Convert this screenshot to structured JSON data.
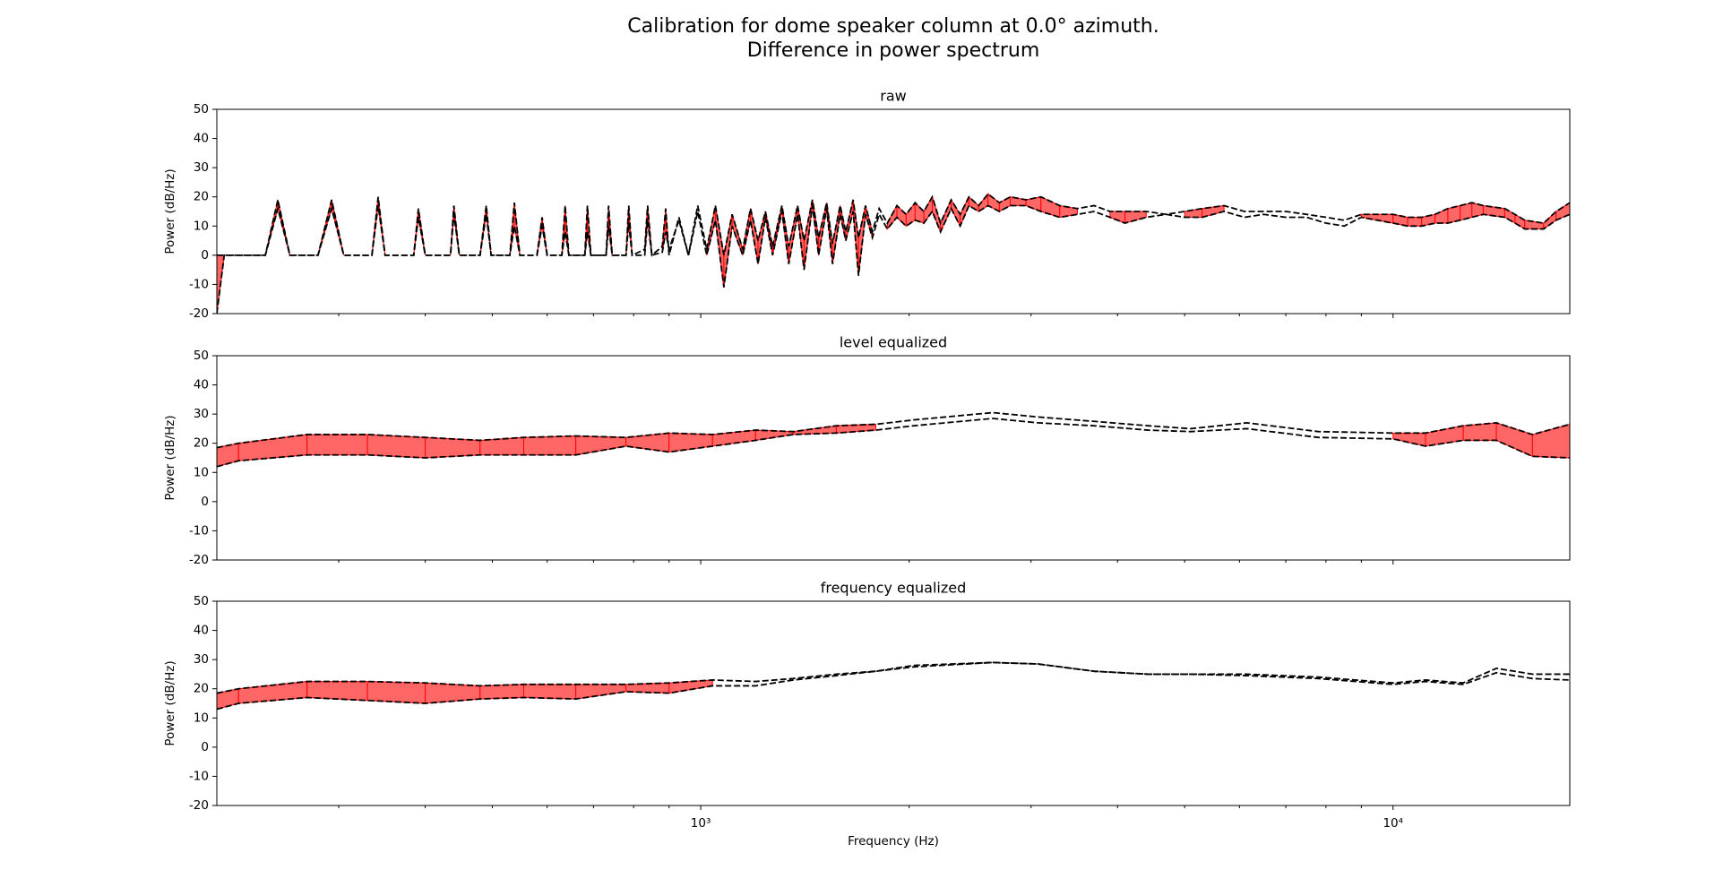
{
  "title": "Calibration for dome speaker column at 0.0° azimuth.",
  "subtitle": "Difference in power spectrum",
  "chart_data": [
    {
      "type": "line",
      "title": "raw",
      "ylabel": "Power (dB/Hz)",
      "log_x": true,
      "xlim": [
        200,
        18000
      ],
      "ylim": [
        -20,
        50
      ],
      "yticks": [
        -20,
        -10,
        0,
        10,
        20,
        30,
        40,
        50
      ],
      "xticks": [
        1000,
        10000
      ],
      "xminorticks": [
        300,
        400,
        500,
        600,
        700,
        800,
        900,
        2000,
        3000,
        4000,
        5000,
        6000,
        7000,
        8000,
        9000
      ],
      "fill_color": "#ff6666",
      "fill_edge": "#ff0000",
      "x": [
        200,
        205,
        235,
        245,
        255,
        280,
        293,
        305,
        335,
        342,
        350,
        385,
        391,
        400,
        435,
        440,
        448,
        480,
        490,
        498,
        530,
        538,
        548,
        580,
        590,
        600,
        630,
        637,
        645,
        680,
        686,
        694,
        730,
        736,
        745,
        780,
        787,
        796,
        830,
        838,
        850,
        880,
        890,
        900,
        930,
        960,
        990,
        1020,
        1050,
        1080,
        1110,
        1150,
        1180,
        1210,
        1240,
        1270,
        1310,
        1340,
        1380,
        1410,
        1450,
        1480,
        1520,
        1550,
        1590,
        1620,
        1660,
        1690,
        1730,
        1770,
        1810,
        1860,
        1920,
        1980,
        2040,
        2100,
        2160,
        2220,
        2300,
        2370,
        2440,
        2520,
        2600,
        2700,
        2800,
        2950,
        3100,
        3300,
        3500,
        3700,
        3900,
        4100,
        4400,
        4700,
        5000,
        5300,
        5700,
        6100,
        6500,
        7000,
        7500,
        8000,
        8500,
        9000,
        10000,
        10500,
        11000,
        11500,
        12000,
        12500,
        13000,
        13500,
        14500,
        15000,
        15500,
        16500,
        17200,
        18000
      ],
      "series": [
        {
          "color": "#000000",
          "values": [
            0,
            0,
            0,
            19,
            0,
            0,
            19,
            0,
            0,
            20,
            0,
            0,
            16,
            0,
            0,
            17,
            0,
            0,
            17,
            0,
            0,
            18,
            0,
            0,
            13,
            0,
            0,
            17,
            0,
            0,
            17,
            0,
            0,
            17,
            0,
            0,
            17,
            0,
            2,
            17,
            0,
            3,
            16,
            0,
            13,
            0,
            17,
            2,
            17,
            0,
            14,
            2,
            16,
            5,
            15,
            3,
            17,
            3,
            17,
            5,
            19,
            6,
            18,
            4,
            17,
            8,
            19,
            6,
            17,
            8,
            16,
            11,
            17,
            14,
            18,
            15,
            20,
            11,
            19,
            14,
            20,
            17,
            21,
            18,
            20,
            19,
            20,
            17,
            16,
            17,
            15,
            15,
            15,
            14,
            15,
            16,
            17,
            15,
            15,
            15,
            14,
            13,
            12,
            14,
            14,
            13,
            13,
            14,
            16,
            17,
            18,
            17,
            16,
            14,
            12,
            11,
            15,
            18
          ]
        },
        {
          "color": "#000000",
          "values": [
            -20,
            0,
            0,
            16,
            0,
            0,
            16,
            0,
            0,
            17,
            0,
            0,
            13,
            0,
            0,
            14,
            0,
            0,
            14,
            0,
            0,
            10,
            0,
            0,
            10,
            0,
            0,
            8,
            0,
            0,
            8,
            0,
            0,
            10,
            0,
            0,
            11,
            0,
            0,
            12,
            0,
            1,
            8,
            2,
            12,
            0,
            15,
            0,
            12,
            -11,
            10,
            0,
            12,
            -3,
            13,
            0,
            15,
            -3,
            14,
            -5,
            17,
            0,
            16,
            -3,
            14,
            5,
            15,
            -7,
            14,
            6,
            14,
            9,
            13,
            10,
            12,
            11,
            15,
            8,
            16,
            10,
            17,
            15,
            17,
            15,
            17,
            17,
            15,
            13,
            14,
            15,
            13,
            11,
            13,
            14,
            13,
            13,
            15,
            13,
            14,
            13,
            13,
            11,
            10,
            13,
            11,
            10,
            10,
            11,
            11,
            12,
            13,
            14,
            13,
            11,
            9,
            9,
            12,
            14
          ]
        }
      ]
    },
    {
      "type": "line",
      "title": "level equalized",
      "ylabel": "Power (dB/Hz)",
      "log_x": true,
      "xlim": [
        200,
        18000
      ],
      "ylim": [
        -20,
        50
      ],
      "yticks": [
        -20,
        -10,
        0,
        10,
        20,
        30,
        40,
        50
      ],
      "xticks": [
        1000,
        10000
      ],
      "xminorticks": [
        300,
        400,
        500,
        600,
        700,
        800,
        900,
        2000,
        3000,
        4000,
        5000,
        6000,
        7000,
        8000,
        9000
      ],
      "fill_color": "#ff6666",
      "fill_edge": "#ff0000",
      "x": [
        200,
        215,
        270,
        330,
        400,
        480,
        555,
        660,
        780,
        900,
        1040,
        1200,
        1360,
        1570,
        1790,
        2030,
        2640,
        3070,
        3700,
        4430,
        5100,
        6150,
        7800,
        10000,
        11140,
        12630,
        14100,
        15900,
        18000
      ],
      "series": [
        {
          "color": "#000000",
          "values": [
            18.5,
            20,
            23,
            23,
            22,
            21,
            22,
            22.5,
            22,
            23.5,
            23,
            24.5,
            24,
            26,
            26.5,
            28,
            30.5,
            29,
            27.5,
            26,
            25,
            27,
            24,
            23.5,
            23.5,
            26,
            27,
            23,
            26.5
          ]
        },
        {
          "color": "#000000",
          "values": [
            12,
            14,
            16,
            16,
            15,
            16,
            16,
            16,
            19,
            17,
            19,
            21,
            23,
            23.5,
            24.5,
            26,
            28.5,
            27,
            26,
            24.5,
            24,
            25,
            22,
            21.5,
            19,
            21,
            21,
            15.5,
            15
          ]
        }
      ]
    },
    {
      "type": "line",
      "title": "frequency equalized",
      "ylabel": "Power (dB/Hz)",
      "xlabel": "Frequency (Hz)",
      "log_x": true,
      "xlim": [
        200,
        18000
      ],
      "ylim": [
        -20,
        50
      ],
      "yticks": [
        -20,
        -10,
        0,
        10,
        20,
        30,
        40,
        50
      ],
      "xticks": [
        {
          "value": 1000,
          "label": "10³"
        },
        {
          "value": 10000,
          "label": "10⁴"
        }
      ],
      "xminorticks": [
        300,
        400,
        500,
        600,
        700,
        800,
        900,
        2000,
        3000,
        4000,
        5000,
        6000,
        7000,
        8000,
        9000
      ],
      "fill_color": "#ff6666",
      "fill_edge": "#ff0000",
      "x": [
        200,
        215,
        270,
        330,
        400,
        480,
        555,
        660,
        780,
        900,
        1040,
        1200,
        1360,
        1570,
        1790,
        2030,
        2640,
        3070,
        3700,
        4430,
        5100,
        6150,
        7800,
        10000,
        11140,
        12630,
        14100,
        15900,
        18000
      ],
      "series": [
        {
          "color": "#000000",
          "values": [
            18.5,
            20,
            22.5,
            22.5,
            22,
            21,
            21.5,
            21.5,
            21.5,
            22,
            23,
            22.5,
            23.5,
            25,
            26,
            28,
            29,
            28.5,
            26,
            25,
            25,
            25,
            24,
            22,
            23,
            22,
            27,
            25,
            25
          ]
        },
        {
          "color": "#000000",
          "values": [
            13,
            15,
            17,
            16,
            15,
            16.5,
            17,
            16.5,
            19,
            18.5,
            21,
            21,
            23,
            24.5,
            26,
            27.5,
            29,
            28.5,
            26,
            25,
            25,
            24.5,
            23.5,
            21.5,
            22.5,
            21.5,
            25.5,
            23.5,
            23
          ]
        }
      ]
    }
  ]
}
